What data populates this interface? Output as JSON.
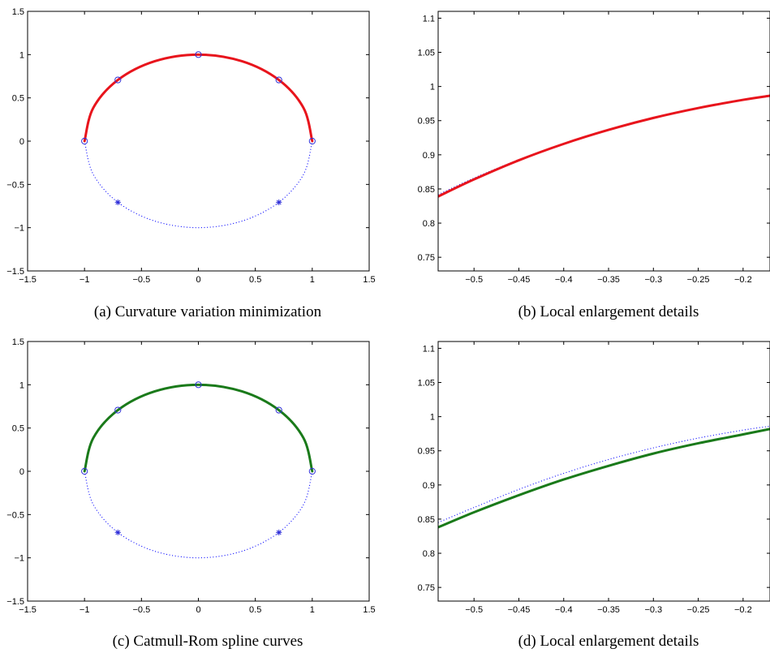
{
  "chart_data": [
    {
      "type": "line",
      "caption": "(a) Curvature variation minimization",
      "xlim": [
        -1.5,
        1.5
      ],
      "ylim": [
        -1.5,
        1.5
      ],
      "xticks": [
        "−1.5",
        "−1",
        "−0.5",
        "0",
        "0.5",
        "1",
        "1.5"
      ],
      "xtick_values": [
        -1.5,
        -1,
        -0.5,
        0,
        0.5,
        1,
        1.5
      ],
      "yticks": [
        "−1.5",
        "−1",
        "−0.5",
        "0",
        "0.5",
        "1",
        "1.5"
      ],
      "ytick_values": [
        -1.5,
        -1,
        -0.5,
        0,
        0.5,
        1,
        1.5
      ],
      "grid": false,
      "series": [
        {
          "style": "dotted",
          "color": "#0000ff",
          "x": [
            -1.0,
            -0.9239,
            -0.7071,
            -0.3827,
            0.0,
            0.3827,
            0.7071,
            0.9239,
            1.0
          ],
          "y": [
            0.0,
            -0.3827,
            -0.7071,
            -0.9239,
            -1.0,
            -0.9239,
            -0.7071,
            -0.3827,
            0.0
          ]
        },
        {
          "style": "solid",
          "color": "#e8141c",
          "x": [
            -1.0,
            -0.9239,
            -0.7071,
            -0.3827,
            0.0,
            0.3827,
            0.7071,
            0.9239,
            1.0
          ],
          "y": [
            0.0,
            0.3827,
            0.7071,
            0.9239,
            1.0,
            0.9239,
            0.7071,
            0.3827,
            0.0
          ]
        }
      ],
      "circle_markers": {
        "color": "#2f2fd8",
        "x": [
          -1.0,
          -0.7071,
          0.0,
          0.7071,
          1.0
        ],
        "y": [
          0.0,
          0.7071,
          1.0,
          0.7071,
          0.0
        ]
      },
      "star_markers": {
        "color": "#2f2fd8",
        "x": [
          -0.7071,
          0.7071
        ],
        "y": [
          -0.7071,
          -0.7071
        ]
      }
    },
    {
      "type": "line",
      "caption": "(b) Local enlargement details",
      "xlim": [
        -0.54,
        -0.17
      ],
      "ylim": [
        0.73,
        1.11
      ],
      "xticks": [
        "−0.5",
        "−0.45",
        "−0.4",
        "−0.35",
        "−0.3",
        "−0.25",
        "−0.2"
      ],
      "xtick_values": [
        -0.5,
        -0.45,
        -0.4,
        -0.35,
        -0.3,
        -0.25,
        -0.2
      ],
      "yticks": [
        "0.75",
        "0.8",
        "0.85",
        "0.9",
        "0.95",
        "1",
        "1.05",
        "1.1"
      ],
      "ytick_values": [
        0.75,
        0.8,
        0.85,
        0.9,
        0.95,
        1.0,
        1.05,
        1.1
      ],
      "grid": false,
      "series": [
        {
          "style": "dotted",
          "color": "#0000ff",
          "x": [
            -0.54,
            -0.5,
            -0.45,
            -0.4,
            -0.35,
            -0.3,
            -0.25,
            -0.2,
            -0.17
          ],
          "y": [
            0.8417,
            0.866,
            0.893,
            0.9165,
            0.9367,
            0.9539,
            0.9682,
            0.9798,
            0.9855
          ]
        },
        {
          "style": "solid",
          "color": "#e8141c",
          "x": [
            -0.54,
            -0.5,
            -0.45,
            -0.4,
            -0.35,
            -0.3,
            -0.25,
            -0.2,
            -0.17
          ],
          "y": [
            0.839,
            0.864,
            0.892,
            0.916,
            0.9365,
            0.954,
            0.9685,
            0.9805,
            0.9865
          ]
        }
      ]
    },
    {
      "type": "line",
      "caption": "(c) Catmull-Rom spline curves",
      "xlim": [
        -1.5,
        1.5
      ],
      "ylim": [
        -1.5,
        1.5
      ],
      "xticks": [
        "−1.5",
        "−1",
        "−0.5",
        "0",
        "0.5",
        "1",
        "1.5"
      ],
      "xtick_values": [
        -1.5,
        -1,
        -0.5,
        0,
        0.5,
        1,
        1.5
      ],
      "yticks": [
        "−1.5",
        "−1",
        "−0.5",
        "0",
        "0.5",
        "1",
        "1.5"
      ],
      "ytick_values": [
        -1.5,
        -1,
        -0.5,
        0,
        0.5,
        1,
        1.5
      ],
      "grid": false,
      "series": [
        {
          "style": "dotted",
          "color": "#0000ff",
          "x": [
            -1.0,
            -0.9239,
            -0.7071,
            -0.3827,
            0.0,
            0.3827,
            0.7071,
            0.9239,
            1.0
          ],
          "y": [
            0.0,
            -0.3827,
            -0.7071,
            -0.9239,
            -1.0,
            -0.9239,
            -0.7071,
            -0.3827,
            0.0
          ]
        },
        {
          "style": "solid",
          "color": "#1a7a1a",
          "x": [
            -1.0,
            -0.9239,
            -0.7071,
            -0.3827,
            0.0,
            0.3827,
            0.7071,
            0.9239,
            1.0
          ],
          "y": [
            0.0,
            0.3827,
            0.7071,
            0.9239,
            1.0,
            0.9239,
            0.7071,
            0.3827,
            0.0
          ]
        }
      ],
      "circle_markers": {
        "color": "#2f2fd8",
        "x": [
          -1.0,
          -0.7071,
          0.0,
          0.7071,
          1.0
        ],
        "y": [
          0.0,
          0.7071,
          1.0,
          0.7071,
          0.0
        ]
      },
      "star_markers": {
        "color": "#2f2fd8",
        "x": [
          -0.7071,
          0.7071
        ],
        "y": [
          -0.7071,
          -0.7071
        ]
      }
    },
    {
      "type": "line",
      "caption": "(d) Local enlargement details",
      "xlim": [
        -0.54,
        -0.17
      ],
      "ylim": [
        0.73,
        1.11
      ],
      "xticks": [
        "−0.5",
        "−0.45",
        "−0.4",
        "−0.35",
        "−0.3",
        "−0.25",
        "−0.2"
      ],
      "xtick_values": [
        -0.5,
        -0.45,
        -0.4,
        -0.35,
        -0.3,
        -0.25,
        -0.2
      ],
      "yticks": [
        "0.75",
        "0.8",
        "0.85",
        "0.9",
        "0.95",
        "1",
        "1.05",
        "1.1"
      ],
      "ytick_values": [
        0.75,
        0.8,
        0.85,
        0.9,
        0.95,
        1.0,
        1.05,
        1.1
      ],
      "grid": false,
      "series": [
        {
          "style": "dotted",
          "color": "#0000ff",
          "x": [
            -0.54,
            -0.5,
            -0.45,
            -0.4,
            -0.35,
            -0.3,
            -0.25,
            -0.2,
            -0.17
          ],
          "y": [
            0.845,
            0.867,
            0.8935,
            0.917,
            0.9372,
            0.9543,
            0.9686,
            0.9803,
            0.986
          ]
        },
        {
          "style": "solid",
          "color": "#1a7a1a",
          "x": [
            -0.54,
            -0.5,
            -0.45,
            -0.4,
            -0.35,
            -0.3,
            -0.25,
            -0.2,
            -0.17
          ],
          "y": [
            0.838,
            0.86,
            0.885,
            0.908,
            0.928,
            0.946,
            0.961,
            0.974,
            0.982
          ]
        }
      ]
    }
  ]
}
